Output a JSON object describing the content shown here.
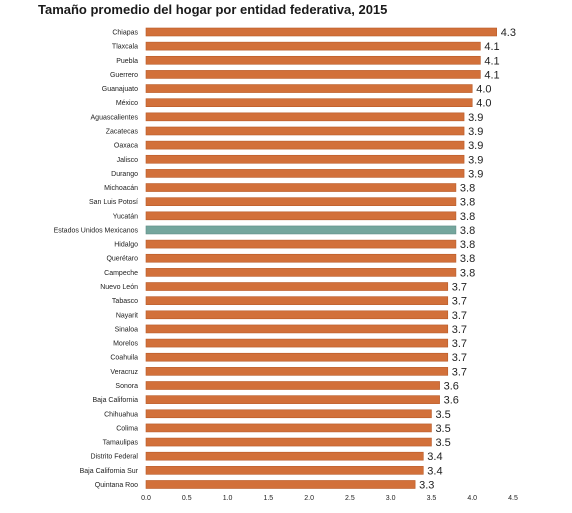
{
  "chart_data": {
    "type": "bar",
    "orientation": "horizontal",
    "title": "Tamaño promedio del hogar por entidad federativa, 2015",
    "categories": [
      "Chiapas",
      "Tlaxcala",
      "Puebla",
      "Guerrero",
      "Guanajuato",
      "México",
      "Aguascalientes",
      "Zacatecas",
      "Oaxaca",
      "Jalisco",
      "Durango",
      "Michoacán",
      "San Luis Potosí",
      "Yucatán",
      "Estados Unidos Mexicanos",
      "Hidalgo",
      "Querétaro",
      "Campeche",
      "Nuevo León",
      "Tabasco",
      "Nayarit",
      "Sinaloa",
      "Morelos",
      "Coahuila",
      "Veracruz",
      "Sonora",
      "Baja California",
      "Chihuahua",
      "Colima",
      "Tamaulipas",
      "Distrito Federal",
      "Baja California Sur",
      "Quintana Roo"
    ],
    "values": [
      4.3,
      4.1,
      4.1,
      4.1,
      4.0,
      4.0,
      3.9,
      3.9,
      3.9,
      3.9,
      3.9,
      3.8,
      3.8,
      3.8,
      3.8,
      3.8,
      3.8,
      3.8,
      3.7,
      3.7,
      3.7,
      3.7,
      3.7,
      3.7,
      3.7,
      3.6,
      3.6,
      3.5,
      3.5,
      3.5,
      3.4,
      3.4,
      3.3
    ],
    "value_labels": [
      "4.3",
      "4.1",
      "4.1",
      "4.1",
      "4.0",
      "4.0",
      "3.9",
      "3.9",
      "3.9",
      "3.9",
      "3.9",
      "3.8",
      "3.8",
      "3.8",
      "3.8",
      "3.8",
      "3.8",
      "3.8",
      "3.7",
      "3.7",
      "3.7",
      "3.7",
      "3.7",
      "3.7",
      "3.7",
      "3.6",
      "3.6",
      "3.5",
      "3.5",
      "3.5",
      "3.4",
      "3.4",
      "3.3"
    ],
    "highlight_index": 14,
    "xlim": [
      0,
      4.5
    ],
    "x_ticks": [
      0,
      0.5,
      1.0,
      1.5,
      2.0,
      2.5,
      3.0,
      3.5,
      4.0,
      4.5
    ],
    "x_tick_labels": [
      "0.0",
      "0.5",
      "1.0",
      "1.5",
      "2.0",
      "2.5",
      "3.0",
      "3.5",
      "4.0",
      "4.5"
    ],
    "grid": false,
    "colors": {
      "bar": "#d2703a",
      "highlight": "#74a69d",
      "bar_edge": "#b85a28",
      "highlight_edge": "#5e8c84"
    }
  }
}
